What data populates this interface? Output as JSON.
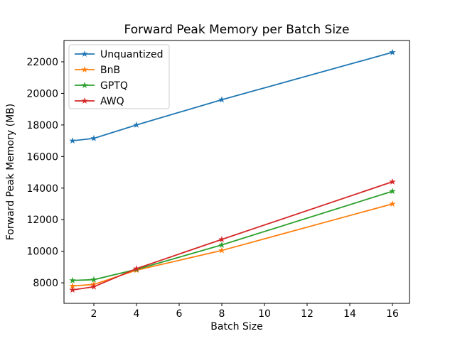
{
  "figure": {
    "background": "#ffffff"
  },
  "chart_data": {
    "type": "line",
    "title": "Forward Peak Memory per Batch Size",
    "xlabel": "Batch Size",
    "ylabel": "Forward Peak Memory (MB)",
    "x": [
      1,
      2,
      4,
      8,
      16
    ],
    "series": [
      {
        "name": "Unquantized",
        "color": "#1f77b4",
        "marker": "star",
        "values": [
          17000,
          17150,
          18000,
          19600,
          22600
        ]
      },
      {
        "name": "BnB",
        "color": "#ff7f0e",
        "marker": "star",
        "values": [
          7800,
          7900,
          8800,
          10050,
          13000
        ]
      },
      {
        "name": "GPTQ",
        "color": "#2ca02c",
        "marker": "star",
        "values": [
          8150,
          8200,
          8850,
          10400,
          13800
        ]
      },
      {
        "name": "AWQ",
        "color": "#d62728",
        "marker": "star",
        "values": [
          7550,
          7750,
          8900,
          10750,
          14400
        ]
      }
    ],
    "xticks": [
      2,
      4,
      6,
      8,
      10,
      12,
      14,
      16
    ],
    "yticks": [
      8000,
      10000,
      12000,
      14000,
      16000,
      18000,
      20000,
      22000
    ],
    "xlim": [
      0.6,
      16.8
    ],
    "ylim": [
      6700,
      23350
    ],
    "grid": false,
    "legend_position": "upper-left",
    "axis_color": "#000000",
    "text_color": "#000000",
    "legend_edge_color": "#cccccc"
  }
}
